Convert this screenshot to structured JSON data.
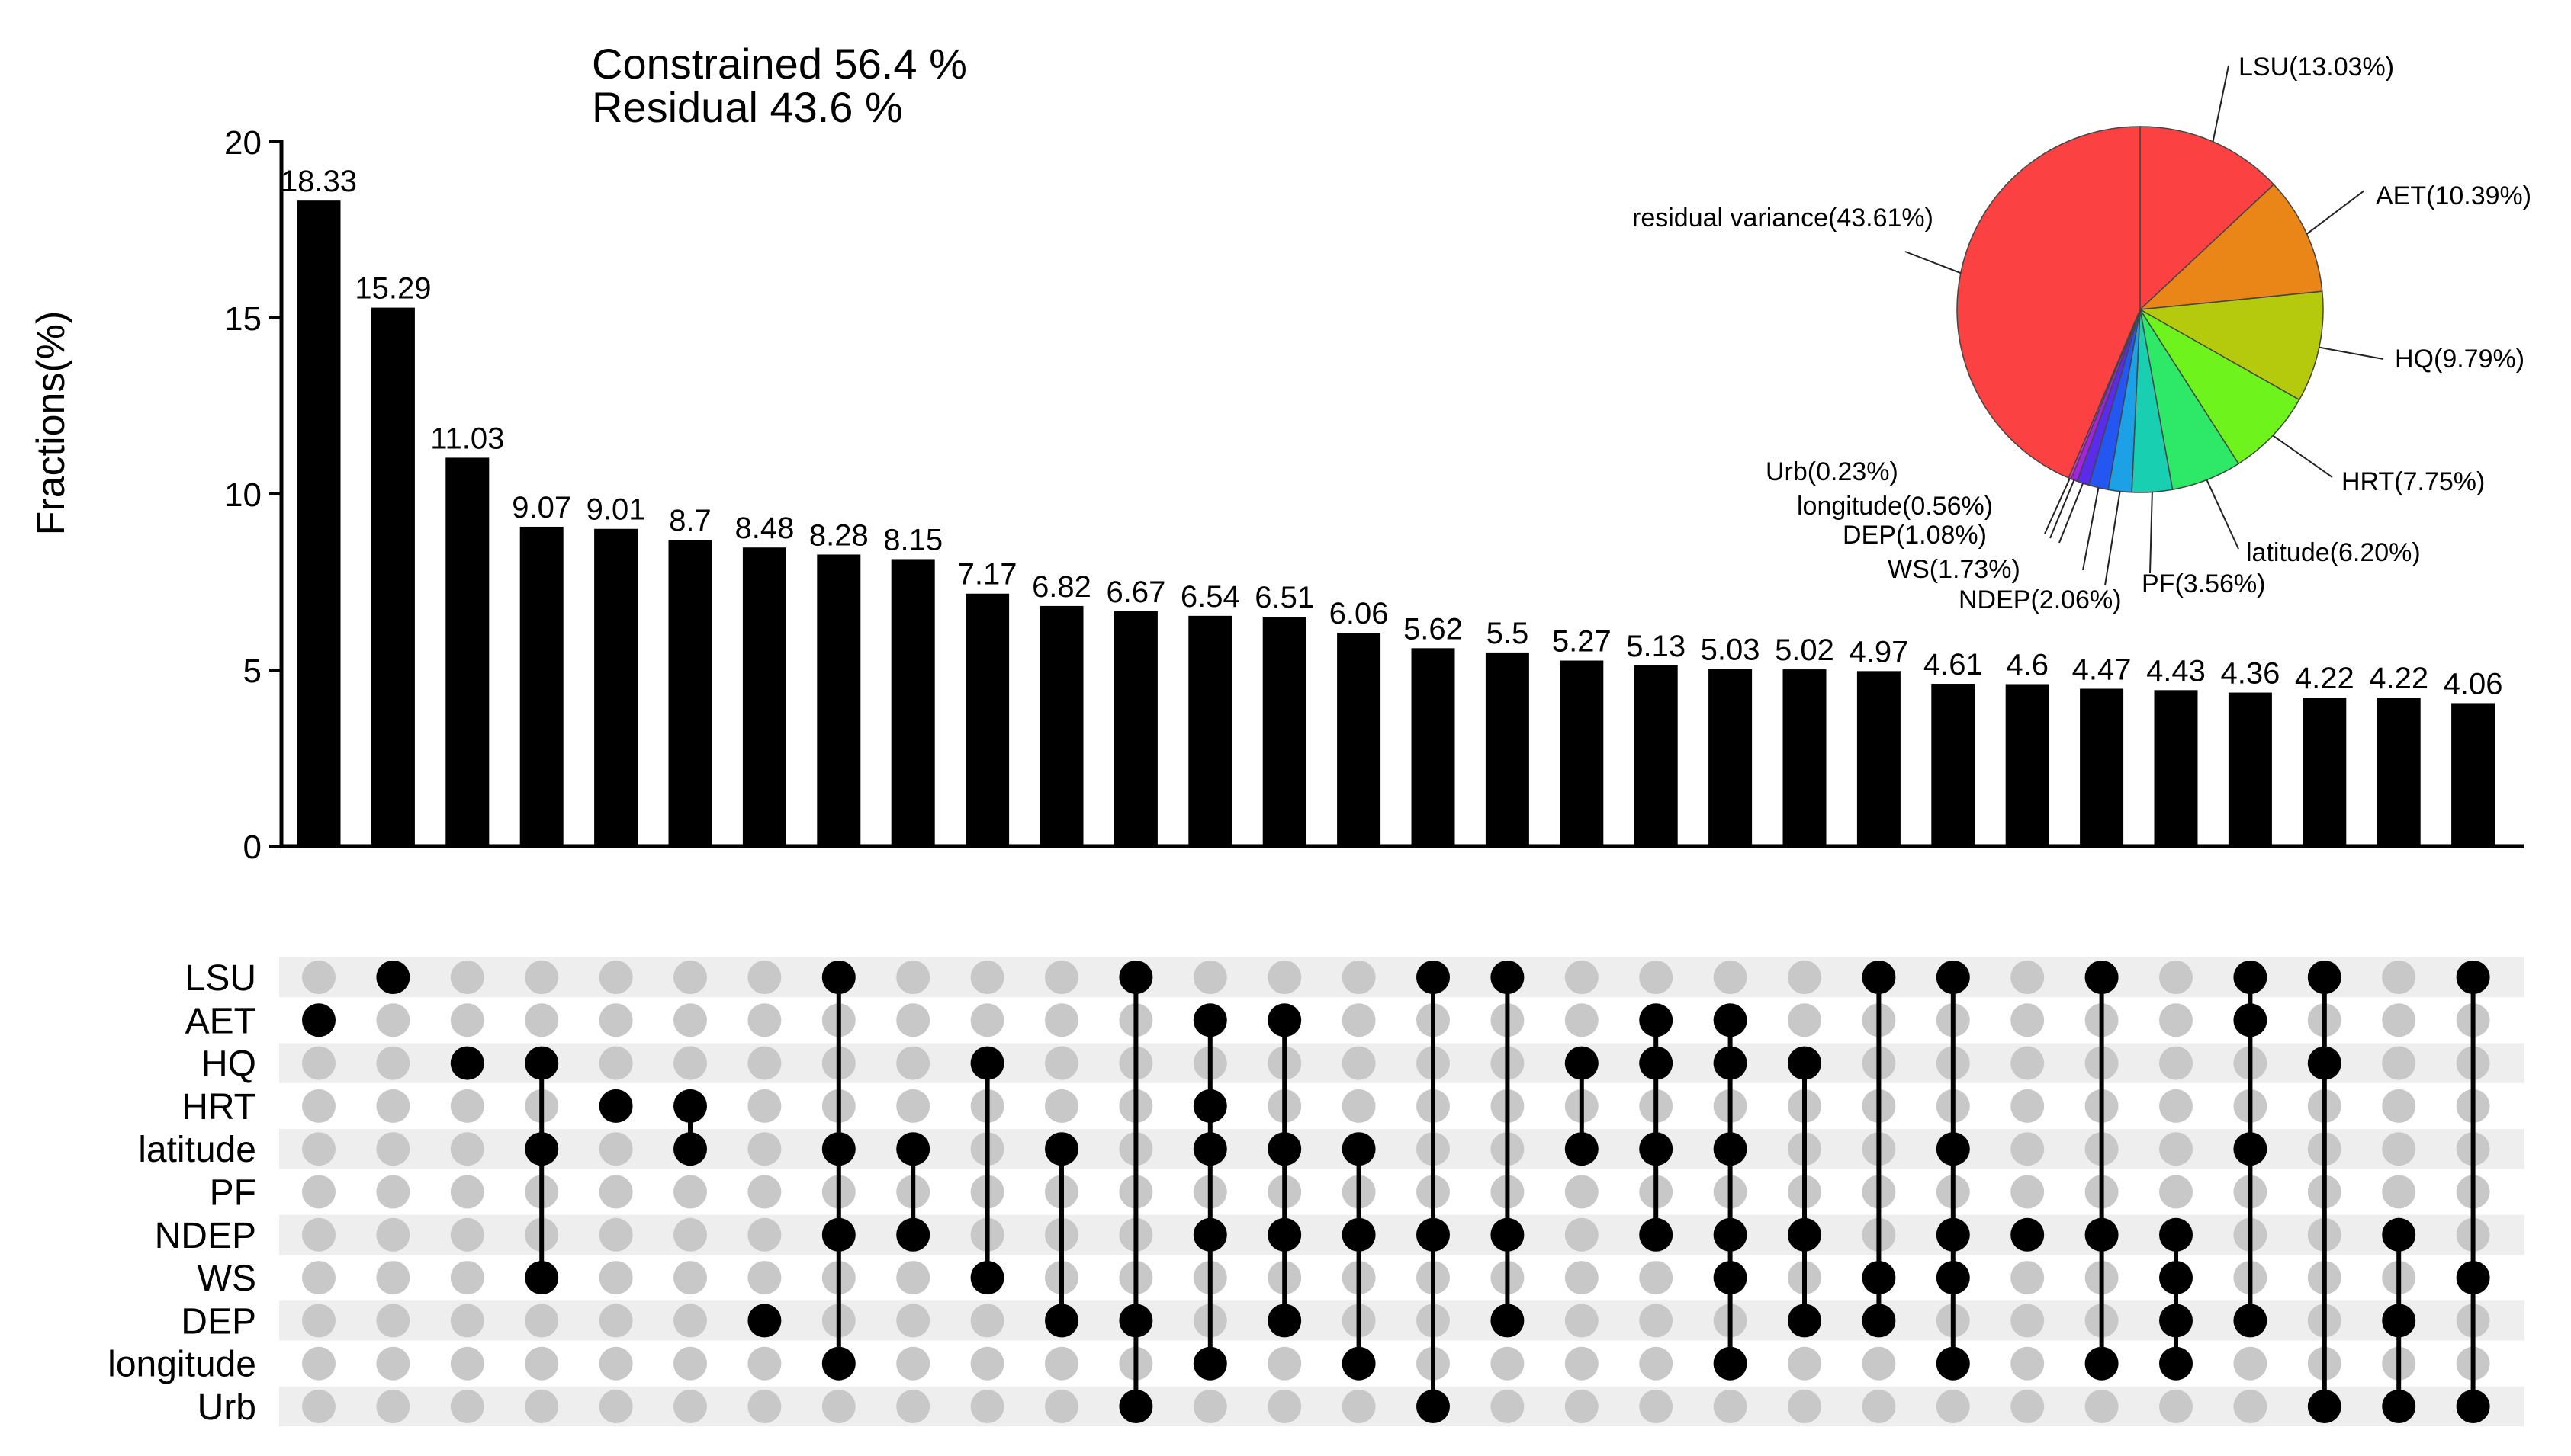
{
  "chart_data": {
    "type": "upset",
    "summary": [
      "Constrained 56.4 %",
      "Residual 43.6 %"
    ],
    "ylabel": "Fractions(%)",
    "ylim": [
      0,
      20
    ],
    "yticks": [
      0,
      5,
      10,
      15,
      20
    ],
    "values": [
      18.33,
      15.29,
      11.03,
      9.07,
      9.01,
      8.7,
      8.48,
      8.28,
      8.15,
      7.17,
      6.82,
      6.67,
      6.54,
      6.51,
      6.06,
      5.62,
      5.5,
      5.27,
      5.13,
      5.03,
      5.02,
      4.97,
      4.61,
      4.6,
      4.47,
      4.43,
      4.36,
      4.22,
      4.22,
      4.06
    ],
    "labels": [
      "18.33",
      "15.29",
      "11.03",
      "9.07",
      "9.01",
      "8.7",
      "8.48",
      "8.28",
      "8.15",
      "7.17",
      "6.82",
      "6.67",
      "6.54",
      "6.51",
      "6.06",
      "5.62",
      "5.5",
      "5.27",
      "5.13",
      "5.03",
      "5.02",
      "4.97",
      "4.61",
      "4.6",
      "4.47",
      "4.43",
      "4.36",
      "4.22",
      "4.22",
      "4.06"
    ],
    "sets": [
      "LSU",
      "AET",
      "HQ",
      "HRT",
      "latitude",
      "PF",
      "NDEP",
      "WS",
      "DEP",
      "longitude",
      "Urb"
    ],
    "combinations": [
      [
        1
      ],
      [
        0
      ],
      [
        2
      ],
      [
        2,
        4,
        7
      ],
      [
        3
      ],
      [
        3,
        4
      ],
      [
        8
      ],
      [
        0,
        4,
        6,
        9
      ],
      [
        4,
        6
      ],
      [
        2,
        7
      ],
      [
        4,
        8
      ],
      [
        0,
        8,
        10
      ],
      [
        1,
        3,
        4,
        6,
        9
      ],
      [
        1,
        4,
        6,
        8
      ],
      [
        4,
        6,
        9
      ],
      [
        0,
        6,
        10
      ],
      [
        0,
        6,
        8
      ],
      [
        2,
        4
      ],
      [
        1,
        2,
        4,
        6
      ],
      [
        1,
        2,
        4,
        6,
        7,
        9
      ],
      [
        2,
        6,
        8
      ],
      [
        0,
        7,
        8
      ],
      [
        0,
        4,
        6,
        7,
        9
      ],
      [
        6
      ],
      [
        0,
        6,
        9
      ],
      [
        6,
        7,
        8,
        9
      ],
      [
        0,
        1,
        4,
        8
      ],
      [
        0,
        2,
        10
      ],
      [
        6,
        8,
        10
      ],
      [
        0,
        7,
        10
      ]
    ],
    "pie": {
      "slices": [
        {
          "label": "LSU(13.03%)",
          "value": 13.03,
          "color": "#fb4141"
        },
        {
          "label": "AET(10.39%)",
          "value": 10.39,
          "color": "#ea8518"
        },
        {
          "label": "HQ(9.79%)",
          "value": 9.79,
          "color": "#b5c90d"
        },
        {
          "label": "HRT(7.75%)",
          "value": 7.75,
          "color": "#6ef41c"
        },
        {
          "label": "latitude(6.20%)",
          "value": 6.2,
          "color": "#2ee867"
        },
        {
          "label": "PF(3.56%)",
          "value": 3.56,
          "color": "#18cfb2"
        },
        {
          "label": "NDEP(2.06%)",
          "value": 2.06,
          "color": "#1ca0e6"
        },
        {
          "label": "WS(1.73%)",
          "value": 1.73,
          "color": "#2456f2"
        },
        {
          "label": "DEP(1.08%)",
          "value": 1.08,
          "color": "#5a2be8"
        },
        {
          "label": "longitude(0.56%)",
          "value": 0.56,
          "color": "#a324e0"
        },
        {
          "label": "Urb(0.23%)",
          "value": 0.23,
          "color": "#e82bd0"
        },
        {
          "label": "residual variance(43.61%)",
          "value": 43.61,
          "color": "#fb4141"
        }
      ]
    }
  }
}
